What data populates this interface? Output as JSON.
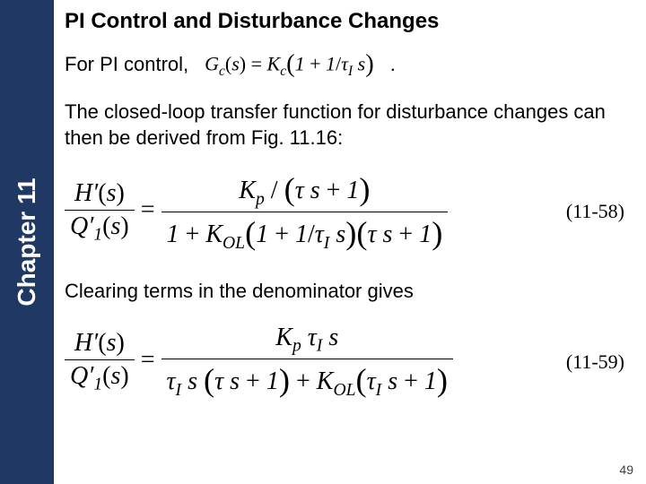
{
  "sidebar": {
    "chapter_label": "Chapter 11"
  },
  "title": "PI Control and Disturbance Changes",
  "line1_text": "For PI control,",
  "gc_eq": {
    "lhs": "G_c(s) =",
    "rhs": "K_c (1 + 1/τ_I s)",
    "trail": "."
  },
  "para1": "The closed-loop transfer function for disturbance changes can then be derived from Fig. 11.16:",
  "eq58": {
    "lhs_num": "H′(s)",
    "lhs_den": "Q′₁(s)",
    "rhs_num": "K_p / (τ s + 1)",
    "rhs_den": "1 + K_OL (1 + 1/τ_I s)(τ s + 1)",
    "num_label": "(11-58)"
  },
  "para2": "Clearing terms in the denominator gives",
  "eq59": {
    "lhs_num": "H′(s)",
    "lhs_den": "Q′₁(s)",
    "rhs_num": "K_p τ_I s",
    "rhs_den": "τ_I s (τ s + 1) + K_OL (τ_I s + 1)",
    "num_label": "(11-59)"
  },
  "page_num": "49",
  "colors": {
    "sidebar_bg": "#1f3864",
    "text": "#000000",
    "bg": "#ffffff"
  }
}
